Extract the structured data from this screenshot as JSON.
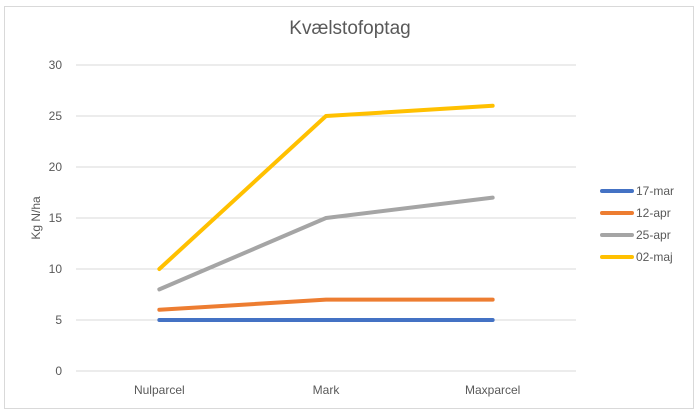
{
  "chart_data": {
    "type": "line",
    "title": "Kvælstofoptag",
    "xlabel": "",
    "ylabel": "Kg N/ha",
    "categories": [
      "Nulparcel",
      "Mark",
      "Maxparcel"
    ],
    "ylim": [
      0,
      30
    ],
    "yticks": [
      0,
      5,
      10,
      15,
      20,
      25,
      30
    ],
    "grid": true,
    "legend_position": "right",
    "series": [
      {
        "name": "17-mar",
        "color": "#4472C4",
        "values": [
          5,
          5,
          5
        ]
      },
      {
        "name": "12-apr",
        "color": "#ED7D31",
        "values": [
          6,
          7,
          7
        ]
      },
      {
        "name": "25-apr",
        "color": "#A5A5A5",
        "values": [
          8,
          15,
          17
        ]
      },
      {
        "name": "02-maj",
        "color": "#FFC000",
        "values": [
          10,
          25,
          26
        ]
      }
    ]
  }
}
